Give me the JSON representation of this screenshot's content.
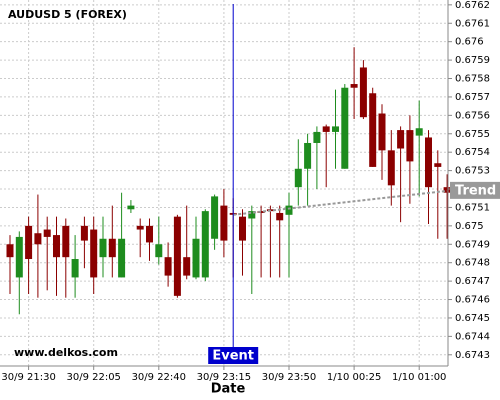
{
  "chart_data": {
    "type": "candlestick",
    "title": "AUDUSD 5 (FOREX)",
    "x_label": "Date",
    "watermark": "www.delkos.com",
    "categories": [
      null,
      null,
      "30/9 21:30",
      null,
      null,
      null,
      null,
      null,
      null,
      "30/9 22:05",
      null,
      null,
      null,
      null,
      null,
      null,
      "30/9 22:40",
      null,
      null,
      null,
      null,
      null,
      null,
      "30/9 23:15",
      null,
      null,
      null,
      null,
      null,
      null,
      "30/9 23:50",
      null,
      null,
      null,
      null,
      null,
      null,
      "1/10 00:25",
      null,
      null,
      null,
      null,
      null,
      null,
      "1/10 01:00",
      null,
      null,
      null
    ],
    "open": [
      0.6749,
      0.67472,
      0.675,
      0.67496,
      0.67498,
      0.67495,
      0.675,
      0.67472,
      0.675,
      0.67498,
      0.67483,
      0.67493,
      0.67472,
      0.67509,
      0.675,
      0.675,
      0.67483,
      0.67483,
      0.67505,
      0.67483,
      0.67472,
      0.67472,
      0.67493,
      0.67511,
      0.67507,
      0.67505,
      0.67504,
      0.67508,
      0.67509,
      0.67507,
      0.67506,
      0.67521,
      0.67531,
      0.67545,
      0.67554,
      0.67551,
      0.67531,
      0.67577,
      0.67586,
      0.67572,
      0.67561,
      0.67541,
      0.67552,
      0.67552,
      0.67549,
      0.67548,
      0.67534,
      0.67521
    ],
    "high": [
      0.67495,
      0.67497,
      0.67505,
      0.67517,
      0.67505,
      0.67505,
      0.67504,
      0.67495,
      0.67505,
      0.67505,
      0.67505,
      0.67511,
      0.67518,
      0.67514,
      0.67504,
      0.67504,
      0.67505,
      0.67491,
      0.67506,
      0.67511,
      0.67505,
      0.67509,
      0.67517,
      0.6752,
      0.67515,
      0.67509,
      0.67511,
      0.67511,
      0.67511,
      0.67511,
      0.67518,
      0.67547,
      0.6755,
      0.67554,
      0.67555,
      0.67574,
      0.67577,
      0.67597,
      0.6759,
      0.67575,
      0.67566,
      0.67552,
      0.67554,
      0.6756,
      0.67568,
      0.67552,
      0.67541,
      0.67528
    ],
    "low": [
      0.67463,
      0.67452,
      0.67463,
      0.67461,
      0.67465,
      0.67462,
      0.67461,
      0.67461,
      0.67477,
      0.67463,
      0.67472,
      0.67472,
      0.67472,
      0.67507,
      0.67483,
      0.67481,
      0.67479,
      0.67467,
      0.67461,
      0.67471,
      0.67471,
      0.6747,
      0.67487,
      0.67483,
      0.67472,
      0.67473,
      0.67463,
      0.67472,
      0.67472,
      0.67472,
      0.67472,
      0.67511,
      0.67511,
      0.6752,
      0.67521,
      0.67531,
      0.67531,
      0.67558,
      0.67558,
      0.67532,
      0.67525,
      0.67511,
      0.67502,
      0.67512,
      0.67516,
      0.67501,
      0.67493,
      0.67493
    ],
    "close": [
      0.67483,
      0.67494,
      0.67482,
      0.6749,
      0.67494,
      0.67483,
      0.67483,
      0.67482,
      0.67492,
      0.67472,
      0.67493,
      0.67483,
      0.67493,
      0.67511,
      0.67498,
      0.67491,
      0.6749,
      0.67473,
      0.67462,
      0.67473,
      0.67493,
      0.67508,
      0.67516,
      0.67492,
      0.67506,
      0.67492,
      0.67508,
      0.67507,
      0.67508,
      0.67503,
      0.67511,
      0.67531,
      0.67545,
      0.67551,
      0.67551,
      0.67554,
      0.67575,
      0.67575,
      0.67559,
      0.67532,
      0.67541,
      0.67522,
      0.67542,
      0.67535,
      0.67553,
      0.67521,
      0.67532,
      0.67518
    ],
    "up_color": "#1e8c1e",
    "down_color": "#8b0000",
    "ylim": [
      0.67425,
      0.67621
    ],
    "yticks": [
      0.6743,
      0.6744,
      0.6745,
      0.6746,
      0.6747,
      0.6748,
      0.6749,
      0.675,
      0.6751,
      0.6752,
      0.6753,
      0.6754,
      0.6755,
      0.6756,
      0.6757,
      0.6758,
      0.6759,
      0.676,
      0.6761,
      0.6762
    ],
    "grid": true,
    "event": {
      "label": "Event",
      "category_index": 24,
      "color": "#0000cc"
    },
    "trend": {
      "label": "Trend",
      "from_index": 24,
      "to_index": 47,
      "values": [
        0.67506,
        0.67519
      ],
      "color": "#999999"
    }
  }
}
